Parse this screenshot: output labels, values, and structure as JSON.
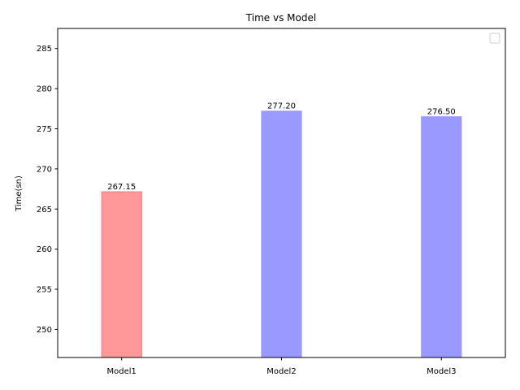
{
  "chart_data": {
    "type": "bar",
    "title": "Time vs Model",
    "xlabel": "",
    "ylabel": "Time(sn)",
    "categories": [
      "Model1",
      "Model2",
      "Model3"
    ],
    "values": [
      267.15,
      277.2,
      276.5
    ],
    "data_labels": [
      "267.15",
      "277.20",
      "276.50"
    ],
    "bar_colors": [
      "#ff9999",
      "#9999ff",
      "#9999ff"
    ],
    "bar_edge_colors": [
      "#ff7777",
      "#9999ff",
      "#9999ff"
    ],
    "ylim": [
      246.5,
      287.5
    ],
    "yticks": [
      250,
      255,
      260,
      265,
      270,
      275,
      280,
      285
    ],
    "grid": false,
    "legend": {
      "placement": "top-right",
      "entries": []
    }
  }
}
